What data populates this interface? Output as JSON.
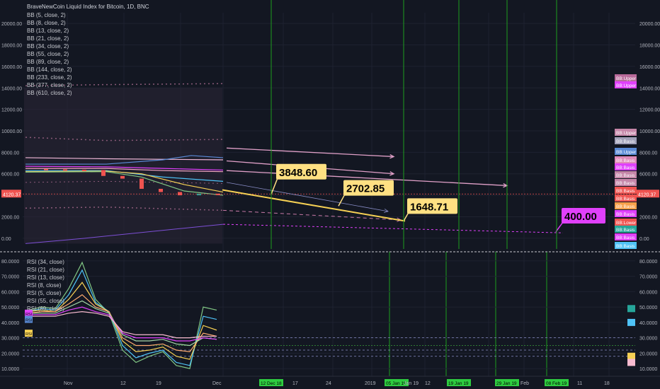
{
  "title": "BraveNewCoin Liquid Index for Bitcoin, 1D, BNC",
  "bb_legend": [
    "BB (5, close, 2)",
    "BB (8, close, 2)",
    "BB (13, close, 2)",
    "BB (21, close, 2)",
    "BB (34, close, 2)",
    "BB (55, close, 2)",
    "BB (89, close, 2)",
    "BB (144, close, 2)",
    "BB (233, close, 2)",
    "BB (377, close, 2)",
    "BB (610, close, 2)"
  ],
  "rsi_legend": [
    "RSI (34, close)",
    "RSI (21, close)",
    "RSI (13, close)",
    "RSI (8, close)",
    "RSI (5, close)",
    "RSI (55, close)",
    "RSI (89, close)"
  ],
  "colors": {
    "background": "#131722",
    "grid": "#1e2230",
    "candle_up": "#26a69a",
    "candle_down": "#ef5350",
    "forecast_pink": "#e0a0c8",
    "forecast_yellow": "#f7d154",
    "target_magenta": "#e040fb",
    "vertical_green": "#1e9e1e"
  },
  "chart_data": [
    {
      "type": "line",
      "title": "BraveNewCoin Liquid Index for Bitcoin, 1D, BNC",
      "y_ticks": [
        "20000.00",
        "18000.00",
        "16000.00",
        "14000.00",
        "12000.00",
        "10000.00",
        "8000.00",
        "6000.00",
        "4000.00",
        "2000.00",
        "0.00"
      ],
      "ylim": [
        -1000,
        21000
      ],
      "x_ticks": [
        "Nov",
        "12",
        "19",
        "Dec",
        "12 Dec 18",
        "17",
        "24",
        "2019",
        "05 Jan 19",
        "Jan 19",
        "12",
        "19 Jan 19",
        "29 Jan 19",
        "Feb",
        "08 Feb 19",
        "11",
        "18"
      ],
      "price_points": [
        [
          "Oct 20",
          6450
        ],
        [
          "Oct 27",
          6420
        ],
        [
          "Nov 3",
          6380
        ],
        [
          "Nov 10",
          6350
        ],
        [
          "Nov 14",
          5800
        ],
        [
          "Nov 17",
          5550
        ],
        [
          "Nov 20",
          4600
        ],
        [
          "Nov 22",
          4300
        ],
        [
          "Nov 25",
          4000
        ],
        [
          "Nov 28",
          4150
        ],
        [
          "Dec 1",
          4120
        ]
      ],
      "current_price_label": "4120.37",
      "forecast_labels": [
        "3848.60",
        "2702.85",
        "1648.71",
        "400.00"
      ],
      "band_labels": [
        "BB:Upper",
        "BB:Upper",
        "BB:Upper",
        "BB:Basis",
        "BB:Upper",
        "BB:Basis",
        "BB:Basis",
        "BB:Basis",
        "BB:Basis",
        "BB:Basis",
        "BB:Basis",
        "BB:Basis",
        "BB:Basis",
        "BB:Lower",
        "BB:Basis",
        "BB:Basis",
        "BB:Basis"
      ],
      "right_badge_price": "4120.37",
      "right_badge_tag": "BLX"
    },
    {
      "type": "line",
      "y_ticks": [
        "80.0000",
        "70.0000",
        "60.0000",
        "50.0000",
        "40.0000",
        "30.0000",
        "20.0000",
        "10.0000"
      ],
      "ylim": [
        5,
        85
      ],
      "series": [
        {
          "name": "RSI (5, close)",
          "values": [
            48,
            50,
            49,
            62,
            79,
            55,
            46,
            22,
            14,
            18,
            21,
            12,
            10,
            50,
            48
          ]
        },
        {
          "name": "RSI (8, close)",
          "values": [
            47,
            49,
            48,
            58,
            74,
            53,
            47,
            25,
            17,
            20,
            22,
            14,
            12,
            44,
            42
          ]
        },
        {
          "name": "RSI (13, close)",
          "values": [
            47,
            48,
            47,
            55,
            66,
            52,
            47,
            28,
            21,
            22,
            24,
            18,
            16,
            38,
            35
          ]
        },
        {
          "name": "RSI (21, close)",
          "values": [
            46,
            47,
            47,
            52,
            58,
            50,
            47,
            30,
            25,
            25,
            26,
            22,
            21,
            33,
            31
          ]
        },
        {
          "name": "RSI (34, close)",
          "values": [
            46,
            46,
            46,
            50,
            54,
            49,
            46,
            32,
            28,
            28,
            29,
            26,
            25,
            30,
            29
          ]
        },
        {
          "name": "RSI (55, close)",
          "values": [
            45,
            45,
            45,
            48,
            50,
            47,
            45,
            33,
            30,
            30,
            30,
            28,
            28,
            30,
            29
          ]
        },
        {
          "name": "RSI (89, close)",
          "values": [
            44,
            44,
            44,
            46,
            47,
            46,
            44,
            34,
            32,
            32,
            32,
            30,
            30,
            31,
            31
          ]
        }
      ],
      "right_badges": [
        "RSI",
        "RSI",
        "RSI"
      ]
    }
  ]
}
